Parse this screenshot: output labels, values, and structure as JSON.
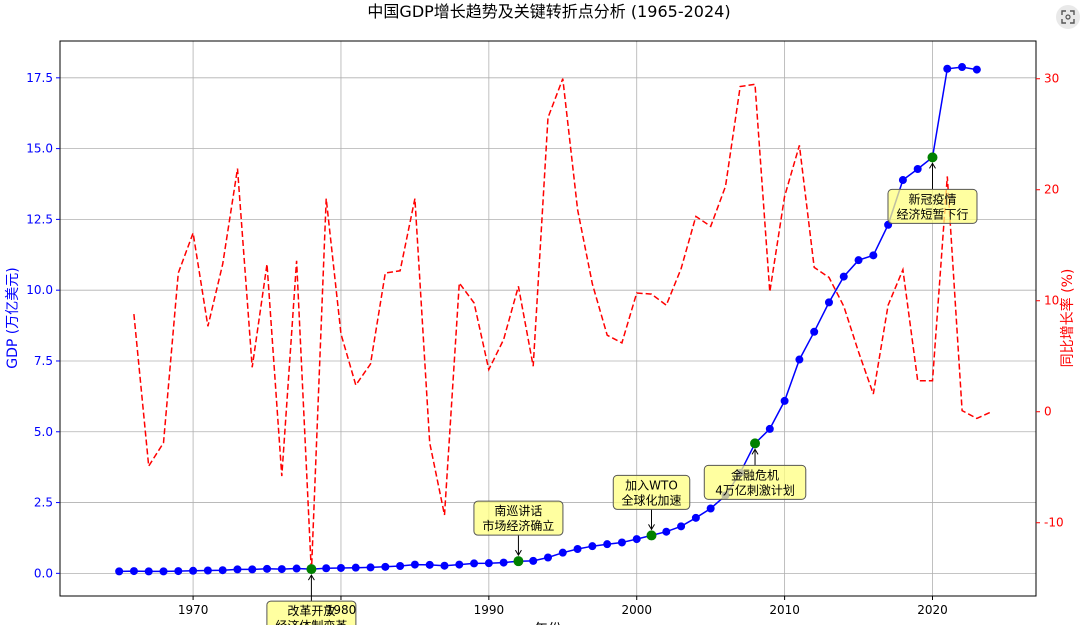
{
  "chart_data": {
    "type": "line",
    "title": "中国GDP增长趋势及关键转折点分析 (1965-2024)",
    "xlabel": "年份",
    "ylabel_left": "GDP (万亿美元)",
    "ylabel_right": "同比增长率 (%)",
    "xlim": [
      1961,
      2027
    ],
    "ylim_left": [
      -0.8,
      18.8
    ],
    "ylim_right": [
      -16.6,
      33.4
    ],
    "x_ticks": [
      1970,
      1980,
      1990,
      2000,
      2010,
      2020
    ],
    "y_ticks_left": [
      "0.0",
      "2.5",
      "5.0",
      "7.5",
      "10.0",
      "12.5",
      "15.0",
      "17.5"
    ],
    "y_ticks_right": [
      -10,
      0,
      10,
      20,
      30
    ],
    "grid": true,
    "colors": {
      "gdp": "#0000ff",
      "growth": "#ff0000",
      "marker": "#008000",
      "annotation_bg": "#ffff80"
    },
    "series": [
      {
        "axis": "left",
        "style": "solid-line-with-circles",
        "x": [
          1965,
          1966,
          1967,
          1968,
          1969,
          1970,
          1971,
          1972,
          1973,
          1974,
          1975,
          1976,
          1977,
          1978,
          1979,
          1980,
          1981,
          1982,
          1983,
          1984,
          1985,
          1986,
          1987,
          1988,
          1989,
          1990,
          1991,
          1992,
          1993,
          1994,
          1995,
          1996,
          1997,
          1998,
          1999,
          2000,
          2001,
          2002,
          2003,
          2004,
          2005,
          2006,
          2007,
          2008,
          2009,
          2010,
          2011,
          2012,
          2013,
          2014,
          2015,
          2016,
          2017,
          2018,
          2019,
          2020,
          2021,
          2022,
          2023
        ],
        "values": [
          0.07,
          0.08,
          0.07,
          0.07,
          0.08,
          0.09,
          0.1,
          0.11,
          0.14,
          0.14,
          0.16,
          0.15,
          0.17,
          0.15,
          0.18,
          0.19,
          0.2,
          0.21,
          0.23,
          0.26,
          0.31,
          0.3,
          0.27,
          0.31,
          0.35,
          0.36,
          0.38,
          0.43,
          0.44,
          0.56,
          0.73,
          0.86,
          0.96,
          1.03,
          1.09,
          1.21,
          1.34,
          1.47,
          1.66,
          1.96,
          2.29,
          2.75,
          3.55,
          4.59,
          5.1,
          6.09,
          7.55,
          8.53,
          9.57,
          10.48,
          11.06,
          11.23,
          12.31,
          13.89,
          14.28,
          14.69,
          17.82,
          17.88,
          17.79
        ]
      },
      {
        "axis": "right",
        "style": "dashed-line",
        "x": [
          1966,
          1967,
          1968,
          1969,
          1970,
          1971,
          1972,
          1973,
          1974,
          1975,
          1976,
          1977,
          1978,
          1979,
          1980,
          1981,
          1982,
          1983,
          1984,
          1985,
          1986,
          1987,
          1988,
          1989,
          1990,
          1991,
          1992,
          1993,
          1994,
          1995,
          1996,
          1997,
          1998,
          1999,
          2000,
          2001,
          2002,
          2003,
          2004,
          2005,
          2006,
          2007,
          2008,
          2009,
          2010,
          2011,
          2012,
          2013,
          2014,
          2015,
          2016,
          2017,
          2018,
          2019,
          2020,
          2021,
          2022,
          2023,
          2024
        ],
        "values": [
          8.8,
          -4.9,
          -2.8,
          12.5,
          16.1,
          7.7,
          13.3,
          21.9,
          4,
          13.3,
          -5.8,
          13.6,
          -14.5,
          19.2,
          7,
          2.4,
          4.3,
          12.5,
          12.7,
          19.2,
          -2.8,
          -9.3,
          11.6,
          9.8,
          3.8,
          6.5,
          11.3,
          4.1,
          26.5,
          30,
          18.2,
          11.5,
          6.9,
          6.2,
          10.7,
          10.6,
          9.6,
          12.9,
          17.6,
          16.7,
          20.3,
          29.3,
          29.5,
          10.8,
          19.4,
          24,
          13,
          12.1,
          9.5,
          5.4,
          1.6,
          9.6,
          12.8,
          2.8,
          2.8,
          21.2,
          0.1,
          -0.6,
          0
        ]
      },
      {
        "axis": "left",
        "style": "key-points",
        "x": [
          1978,
          1992,
          2001,
          2008,
          2020
        ],
        "values": [
          0.15,
          0.43,
          1.34,
          4.59,
          14.69
        ]
      }
    ],
    "annotations": [
      {
        "x": 1978,
        "y": 0.15,
        "lines": [
          "改革开放",
          "经济体制变革"
        ]
      },
      {
        "x": 1992,
        "y": 0.43,
        "lines": [
          "南巡讲话",
          "市场经济确立"
        ]
      },
      {
        "x": 2001,
        "y": 1.34,
        "lines": [
          "加入WTO",
          "全球化加速"
        ]
      },
      {
        "x": 2008,
        "y": 4.59,
        "lines": [
          "金融危机",
          "4万亿刺激计划"
        ]
      },
      {
        "x": 2020,
        "y": 14.69,
        "lines": [
          "新冠疫情",
          "经济短暂下行"
        ]
      }
    ]
  },
  "ui": {
    "expand_icon": "expand-icon"
  }
}
